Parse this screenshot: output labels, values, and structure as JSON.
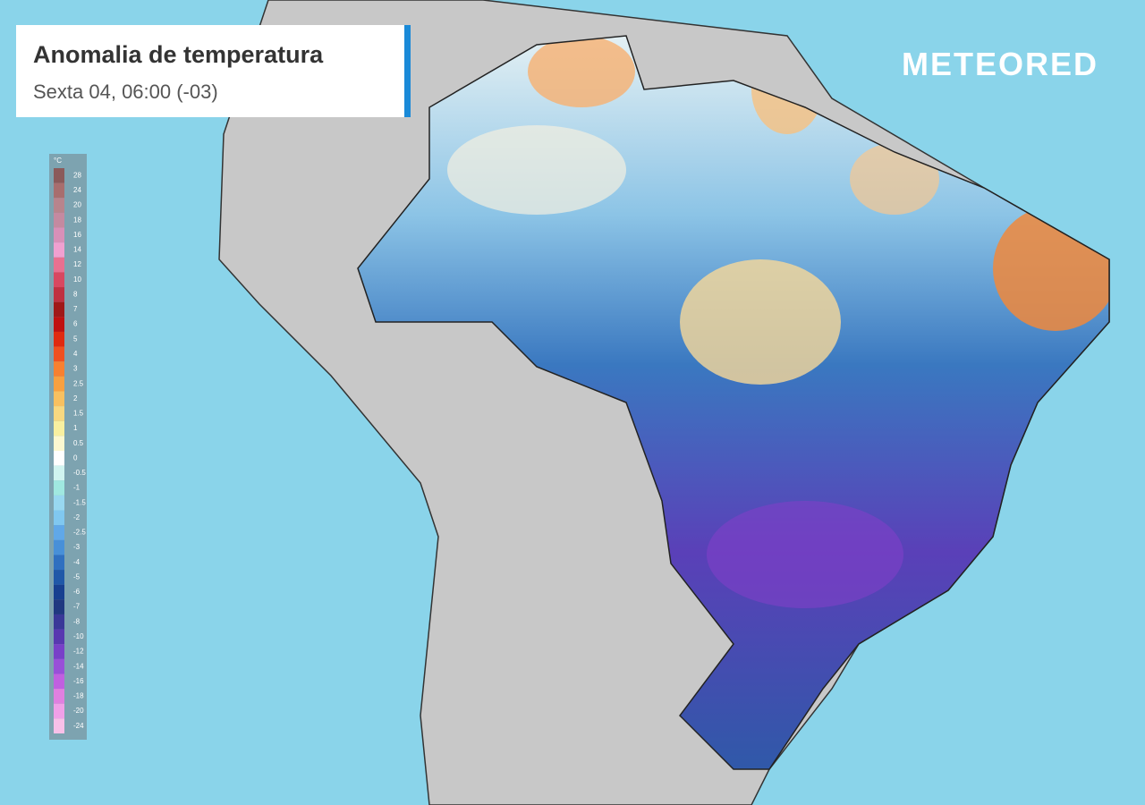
{
  "header": {
    "title": "Anomalia de temperatura",
    "subtitle": "Sexta 04, 06:00 (-03)"
  },
  "logo": "METEORED",
  "legend": {
    "unit": "°C",
    "stops": [
      {
        "label": 28,
        "color": "#8b5a5a"
      },
      {
        "label": 24,
        "color": "#a86e6e"
      },
      {
        "label": 20,
        "color": "#b8848c"
      },
      {
        "label": 18,
        "color": "#c48aa0"
      },
      {
        "label": 16,
        "color": "#d890b8"
      },
      {
        "label": 14,
        "color": "#f0a0d0"
      },
      {
        "label": 12,
        "color": "#e87090"
      },
      {
        "label": 10,
        "color": "#d84860"
      },
      {
        "label": 8,
        "color": "#c03040"
      },
      {
        "label": 7,
        "color": "#a01818"
      },
      {
        "label": 6,
        "color": "#c01010"
      },
      {
        "label": 5,
        "color": "#e02a10"
      },
      {
        "label": 4,
        "color": "#f05020"
      },
      {
        "label": 3,
        "color": "#f88030"
      },
      {
        "label": 2.5,
        "color": "#f8a040"
      },
      {
        "label": 2,
        "color": "#f8c060"
      },
      {
        "label": 1.5,
        "color": "#f8d880"
      },
      {
        "label": 1,
        "color": "#f8f0a0"
      },
      {
        "label": 0.5,
        "color": "#fcf8d0"
      },
      {
        "label": 0,
        "color": "#ffffff"
      },
      {
        "label": -0.5,
        "color": "#d0f4f0"
      },
      {
        "label": -1,
        "color": "#a0e8e0"
      },
      {
        "label": -1.5,
        "color": "#98d8f0"
      },
      {
        "label": -2,
        "color": "#80c8f0"
      },
      {
        "label": -2.5,
        "color": "#60a8e8"
      },
      {
        "label": -3,
        "color": "#4890d8"
      },
      {
        "label": -4,
        "color": "#3070c0"
      },
      {
        "label": -5,
        "color": "#2058a8"
      },
      {
        "label": -6,
        "color": "#184090"
      },
      {
        "label": -7,
        "color": "#203880"
      },
      {
        "label": -8,
        "color": "#3a3898"
      },
      {
        "label": -10,
        "color": "#5838b0"
      },
      {
        "label": -12,
        "color": "#7840c8"
      },
      {
        "label": -14,
        "color": "#9850d8"
      },
      {
        "label": -16,
        "color": "#c060e0"
      },
      {
        "label": -18,
        "color": "#e080e0"
      },
      {
        "label": -20,
        "color": "#f0a0e8"
      },
      {
        "label": -24,
        "color": "#f8c0e8"
      }
    ]
  }
}
